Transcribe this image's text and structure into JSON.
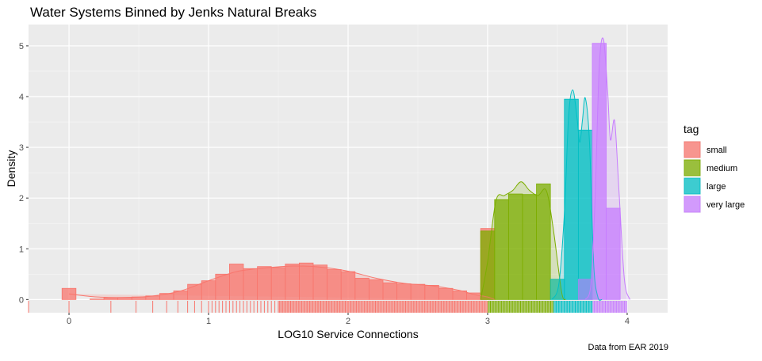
{
  "chart_data": {
    "type": "histogram",
    "title": "Water Systems Binned by Jenks Natural Breaks",
    "xlabel": "LOG10 Service Connections",
    "ylabel": "Density",
    "caption": "Data from EAR 2019",
    "xlim": [
      -0.29,
      4.29
    ],
    "ylim": [
      -0.26,
      5.42
    ],
    "x_ticks": [
      0,
      1,
      2,
      3,
      4
    ],
    "y_ticks": [
      0,
      1,
      2,
      3,
      4,
      5
    ],
    "grid": true,
    "bin_width": 0.1,
    "legend": {
      "title": "tag",
      "position": "right",
      "entries": [
        "small",
        "medium",
        "large",
        "very large"
      ]
    },
    "colors": {
      "small": "#F8766D",
      "medium": "#7CAE00",
      "large": "#00BFC4",
      "very large": "#C77CFF"
    },
    "series": [
      {
        "name": "small",
        "bins": [
          [
            0.0,
            0.22
          ],
          [
            0.1,
            0.0
          ],
          [
            0.2,
            0.01
          ],
          [
            0.3,
            0.03
          ],
          [
            0.4,
            0.04
          ],
          [
            0.5,
            0.05
          ],
          [
            0.6,
            0.07
          ],
          [
            0.7,
            0.12
          ],
          [
            0.8,
            0.17
          ],
          [
            0.9,
            0.3
          ],
          [
            1.0,
            0.37
          ],
          [
            1.1,
            0.5
          ],
          [
            1.2,
            0.7
          ],
          [
            1.3,
            0.61
          ],
          [
            1.4,
            0.65
          ],
          [
            1.5,
            0.63
          ],
          [
            1.6,
            0.7
          ],
          [
            1.7,
            0.72
          ],
          [
            1.8,
            0.68
          ],
          [
            1.9,
            0.59
          ],
          [
            2.0,
            0.55
          ],
          [
            2.1,
            0.42
          ],
          [
            2.2,
            0.39
          ],
          [
            2.3,
            0.33
          ],
          [
            2.4,
            0.31
          ],
          [
            2.5,
            0.3
          ],
          [
            2.6,
            0.28
          ],
          [
            2.7,
            0.22
          ],
          [
            2.8,
            0.17
          ],
          [
            2.9,
            0.13
          ],
          [
            3.0,
            1.4
          ]
        ],
        "density": [
          [
            0.0,
            0.11
          ],
          [
            0.2,
            0.05
          ],
          [
            0.4,
            0.04
          ],
          [
            0.6,
            0.07
          ],
          [
            0.8,
            0.17
          ],
          [
            1.0,
            0.37
          ],
          [
            1.2,
            0.55
          ],
          [
            1.4,
            0.62
          ],
          [
            1.6,
            0.66
          ],
          [
            1.8,
            0.64
          ],
          [
            2.0,
            0.56
          ],
          [
            2.2,
            0.42
          ],
          [
            2.4,
            0.32
          ],
          [
            2.6,
            0.27
          ],
          [
            2.8,
            0.18
          ],
          [
            2.9,
            0.1
          ],
          [
            3.0,
            0.05
          ],
          [
            3.05,
            0.0
          ]
        ]
      },
      {
        "name": "medium",
        "bins": [
          [
            3.0,
            1.35
          ],
          [
            3.1,
            1.97
          ],
          [
            3.2,
            2.08
          ],
          [
            3.3,
            2.07
          ],
          [
            3.4,
            2.28
          ]
        ],
        "density": [
          [
            2.95,
            0.0
          ],
          [
            3.0,
            0.75
          ],
          [
            3.06,
            1.95
          ],
          [
            3.12,
            2.05
          ],
          [
            3.18,
            2.15
          ],
          [
            3.24,
            2.32
          ],
          [
            3.3,
            2.15
          ],
          [
            3.36,
            2.05
          ],
          [
            3.42,
            2.15
          ],
          [
            3.47,
            1.4
          ],
          [
            3.53,
            0.15
          ],
          [
            3.56,
            0.0
          ]
        ]
      },
      {
        "name": "large",
        "bins": [
          [
            3.5,
            0.4
          ],
          [
            3.6,
            3.95
          ],
          [
            3.7,
            3.34
          ]
        ],
        "density": [
          [
            3.46,
            0.0
          ],
          [
            3.51,
            0.3
          ],
          [
            3.55,
            1.7
          ],
          [
            3.58,
            3.6
          ],
          [
            3.61,
            4.13
          ],
          [
            3.64,
            3.6
          ],
          [
            3.66,
            3.1
          ],
          [
            3.68,
            3.55
          ],
          [
            3.7,
            3.97
          ],
          [
            3.73,
            3.1
          ],
          [
            3.76,
            0.7
          ],
          [
            3.79,
            0.05
          ],
          [
            3.82,
            0.0
          ]
        ]
      },
      {
        "name": "very large",
        "bins": [
          [
            3.7,
            0.4
          ],
          [
            3.8,
            5.05
          ],
          [
            3.9,
            1.8
          ]
        ],
        "density": [
          [
            3.7,
            0.0
          ],
          [
            3.74,
            0.3
          ],
          [
            3.77,
            2.0
          ],
          [
            3.8,
            4.6
          ],
          [
            3.83,
            5.13
          ],
          [
            3.86,
            4.1
          ],
          [
            3.88,
            3.15
          ],
          [
            3.91,
            3.52
          ],
          [
            3.94,
            2.2
          ],
          [
            3.98,
            0.4
          ],
          [
            4.02,
            0.0
          ]
        ]
      }
    ]
  }
}
